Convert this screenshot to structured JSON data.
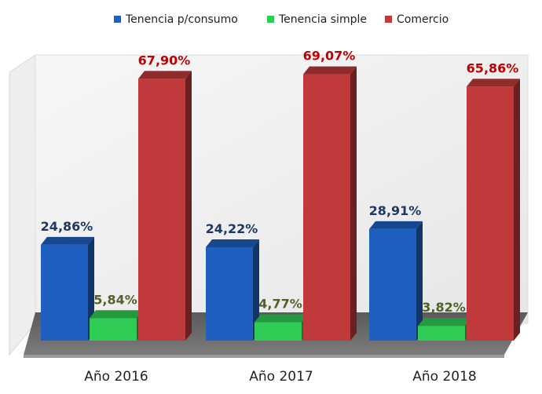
{
  "chart_data": {
    "type": "bar",
    "title": "",
    "xlabel": "",
    "ylabel": "",
    "categories": [
      "Año 2016",
      "Año 2017",
      "Año 2018"
    ],
    "series": [
      {
        "name": "Tenencia p/consumo",
        "values": [
          24.86,
          24.22,
          28.91
        ],
        "labels": [
          "24,86%",
          "24,22%",
          "28,91%"
        ],
        "color": "#1f5fbf",
        "label_color": "#1f3864"
      },
      {
        "name": "Tenencia simple",
        "values": [
          5.84,
          4.77,
          3.82
        ],
        "labels": [
          "5,84%",
          "4,77%",
          "3,82%"
        ],
        "color": "#2ecc55",
        "label_color": "#4f6228"
      },
      {
        "name": "Comercio",
        "values": [
          67.9,
          69.07,
          65.86
        ],
        "labels": [
          "67,90%",
          "69,07%",
          "65,86%"
        ],
        "color": "#c0393b",
        "label_color": "#c00000"
      }
    ],
    "ylim": [
      0,
      70
    ],
    "grid": false,
    "legend": "top-center",
    "style": "3d-column"
  }
}
